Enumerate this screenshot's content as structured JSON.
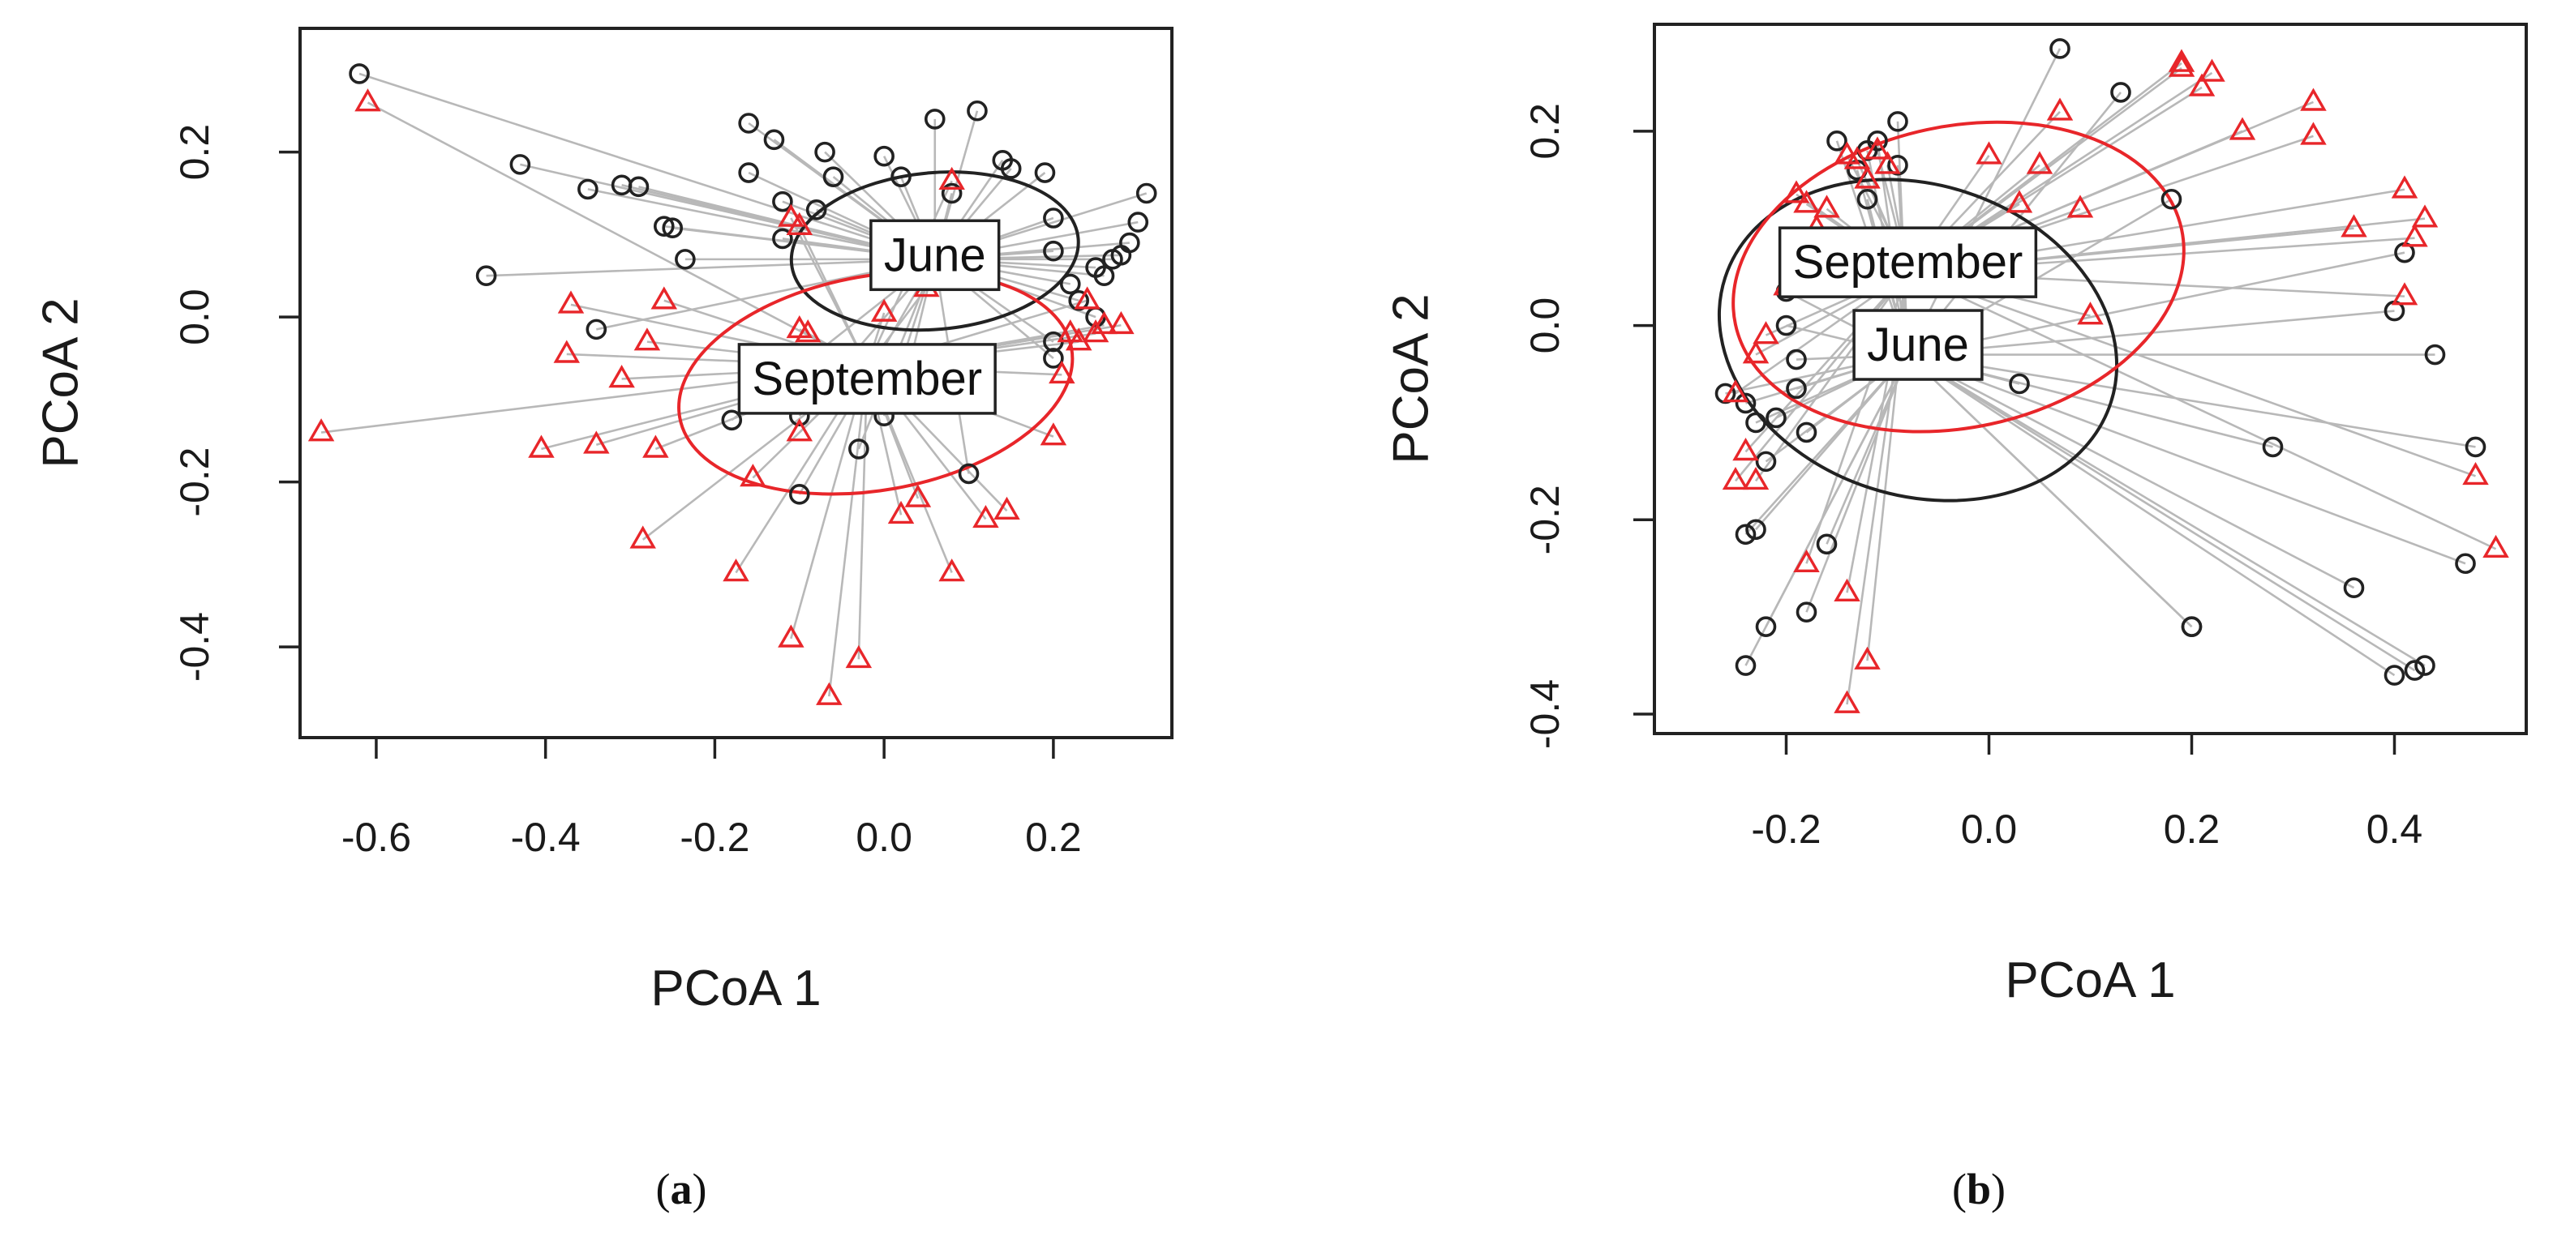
{
  "figure": {
    "background": "#ffffff",
    "colors": {
      "june": "#222222",
      "september": "#e8262a",
      "spoke": "#b8b8b8",
      "frame": "#222222",
      "label_box": "#222222"
    }
  },
  "chart_data": [
    {
      "id": "a",
      "type": "scatter",
      "caption": {
        "open": "(",
        "letter": "a",
        "close": ")"
      },
      "xlabel": "PCoA 1",
      "ylabel": "PCoA 2",
      "xlim": [
        -0.69,
        0.34
      ],
      "ylim": [
        -0.51,
        0.35
      ],
      "xticks": [
        -0.6,
        -0.4,
        -0.2,
        0.0,
        0.2
      ],
      "xtick_labels": [
        "-0.6",
        "-0.4",
        "-0.2",
        "0.0",
        "0.2"
      ],
      "yticks": [
        -0.4,
        -0.2,
        0.0,
        0.2
      ],
      "ytick_labels": [
        "-0.4",
        "-0.2",
        "0.0",
        "0.2"
      ],
      "series": [
        {
          "name": "June",
          "marker": "circle",
          "color": "#222222",
          "centroid": [
            0.06,
            0.07
          ],
          "ellipse": {
            "cx": 0.06,
            "cy": 0.08,
            "rx": 0.17,
            "ry": 0.095,
            "angle": -5
          },
          "points": [
            [
              -0.62,
              0.295
            ],
            [
              -0.43,
              0.185
            ],
            [
              -0.35,
              0.155
            ],
            [
              -0.31,
              0.16
            ],
            [
              -0.29,
              0.158
            ],
            [
              -0.26,
              0.11
            ],
            [
              -0.25,
              0.108
            ],
            [
              -0.235,
              0.07
            ],
            [
              -0.47,
              0.05
            ],
            [
              -0.34,
              -0.015
            ],
            [
              -0.16,
              0.235
            ],
            [
              -0.13,
              0.215
            ],
            [
              -0.16,
              0.175
            ],
            [
              -0.12,
              0.14
            ],
            [
              -0.12,
              0.095
            ],
            [
              -0.07,
              0.2
            ],
            [
              -0.06,
              0.17
            ],
            [
              -0.08,
              0.13
            ],
            [
              0.0,
              0.195
            ],
            [
              0.02,
              0.17
            ],
            [
              0.06,
              0.24
            ],
            [
              0.11,
              0.25
            ],
            [
              0.14,
              0.19
            ],
            [
              0.15,
              0.18
            ],
            [
              0.19,
              0.175
            ],
            [
              0.08,
              0.15
            ],
            [
              0.2,
              0.12
            ],
            [
              0.2,
              0.08
            ],
            [
              0.22,
              0.04
            ],
            [
              0.25,
              0.06
            ],
            [
              0.26,
              0.05
            ],
            [
              0.27,
              0.07
            ],
            [
              0.28,
              0.075
            ],
            [
              0.29,
              0.09
            ],
            [
              0.3,
              0.115
            ],
            [
              0.31,
              0.15
            ],
            [
              0.23,
              0.02
            ],
            [
              0.25,
              0.0
            ],
            [
              0.2,
              -0.03
            ],
            [
              0.2,
              -0.05
            ],
            [
              -0.1,
              -0.12
            ],
            [
              0.0,
              -0.12
            ],
            [
              0.02,
              -0.1
            ],
            [
              -0.03,
              -0.16
            ],
            [
              -0.1,
              -0.215
            ],
            [
              0.1,
              -0.19
            ],
            [
              -0.18,
              -0.125
            ]
          ]
        },
        {
          "name": "September",
          "marker": "triangle",
          "color": "#e8262a",
          "centroid": [
            -0.02,
            -0.06
          ],
          "ellipse": {
            "cx": -0.01,
            "cy": -0.08,
            "rx": 0.235,
            "ry": 0.13,
            "angle": -10
          },
          "points": [
            [
              -0.61,
              0.26
            ],
            [
              -0.665,
              -0.14
            ],
            [
              -0.405,
              -0.16
            ],
            [
              -0.34,
              -0.155
            ],
            [
              -0.27,
              -0.16
            ],
            [
              -0.37,
              0.015
            ],
            [
              -0.375,
              -0.045
            ],
            [
              -0.31,
              -0.075
            ],
            [
              -0.28,
              -0.03
            ],
            [
              -0.26,
              0.02
            ],
            [
              -0.285,
              -0.27
            ],
            [
              -0.175,
              -0.31
            ],
            [
              -0.155,
              -0.195
            ],
            [
              -0.11,
              -0.39
            ],
            [
              -0.065,
              -0.46
            ],
            [
              -0.03,
              -0.415
            ],
            [
              -0.1,
              -0.14
            ],
            [
              -0.1,
              -0.015
            ],
            [
              -0.09,
              -0.02
            ],
            [
              -0.11,
              0.12
            ],
            [
              -0.1,
              0.11
            ],
            [
              0.0,
              0.005
            ],
            [
              0.05,
              0.035
            ],
            [
              0.08,
              0.165
            ],
            [
              0.04,
              -0.22
            ],
            [
              0.02,
              -0.24
            ],
            [
              0.08,
              -0.31
            ],
            [
              0.12,
              -0.245
            ],
            [
              0.145,
              -0.235
            ],
            [
              0.2,
              -0.145
            ],
            [
              0.21,
              -0.07
            ],
            [
              0.22,
              -0.02
            ],
            [
              0.23,
              -0.03
            ],
            [
              0.25,
              -0.02
            ],
            [
              0.26,
              -0.01
            ],
            [
              0.28,
              -0.01
            ],
            [
              0.24,
              0.02
            ]
          ]
        }
      ],
      "group_labels": [
        {
          "series": "June",
          "text": "June",
          "anchor": [
            0.06,
            0.075
          ]
        },
        {
          "series": "September",
          "text": "September",
          "anchor": [
            -0.02,
            -0.075
          ]
        }
      ]
    },
    {
      "id": "b",
      "type": "scatter",
      "caption": {
        "open": "(",
        "letter": "b",
        "close": ")"
      },
      "xlabel": "PCoA 1",
      "ylabel": "PCoA 2",
      "xlim": [
        -0.33,
        0.53
      ],
      "ylim": [
        -0.42,
        0.31
      ],
      "xticks": [
        -0.2,
        0.0,
        0.2,
        0.4
      ],
      "xtick_labels": [
        "-0.2",
        "0.0",
        "0.2",
        "0.4"
      ],
      "yticks": [
        -0.4,
        -0.2,
        0.0,
        0.2
      ],
      "ytick_labels": [
        "-0.4",
        "-0.2",
        "0.0",
        "0.2"
      ],
      "series": [
        {
          "name": "June",
          "marker": "circle",
          "color": "#222222",
          "centroid": [
            -0.08,
            -0.03
          ],
          "ellipse": {
            "cx": -0.07,
            "cy": -0.015,
            "rx": 0.2,
            "ry": 0.16,
            "angle": 18
          },
          "points": [
            [
              -0.15,
              0.19
            ],
            [
              -0.12,
              0.18
            ],
            [
              -0.09,
              0.21
            ],
            [
              -0.13,
              0.16
            ],
            [
              -0.11,
              0.19
            ],
            [
              -0.09,
              0.165
            ],
            [
              -0.12,
              0.13
            ],
            [
              0.07,
              0.285
            ],
            [
              0.13,
              0.24
            ],
            [
              0.18,
              0.13
            ],
            [
              -0.2,
              0.035
            ],
            [
              -0.2,
              0.0
            ],
            [
              -0.19,
              -0.035
            ],
            [
              -0.19,
              -0.065
            ],
            [
              -0.21,
              -0.095
            ],
            [
              -0.18,
              -0.11
            ],
            [
              -0.24,
              -0.08
            ],
            [
              -0.23,
              -0.1
            ],
            [
              -0.26,
              -0.07
            ],
            [
              -0.22,
              -0.14
            ],
            [
              -0.23,
              -0.21
            ],
            [
              -0.24,
              -0.215
            ],
            [
              -0.16,
              -0.225
            ],
            [
              -0.22,
              -0.31
            ],
            [
              -0.18,
              -0.295
            ],
            [
              -0.24,
              -0.35
            ],
            [
              0.03,
              -0.06
            ],
            [
              0.2,
              -0.31
            ],
            [
              0.2,
              -0.31
            ],
            [
              0.28,
              -0.125
            ],
            [
              0.36,
              -0.27
            ],
            [
              0.4,
              -0.36
            ],
            [
              0.42,
              -0.355
            ],
            [
              0.43,
              -0.35
            ],
            [
              0.47,
              -0.245
            ],
            [
              0.48,
              -0.125
            ],
            [
              0.44,
              -0.03
            ],
            [
              0.4,
              0.015
            ],
            [
              0.41,
              0.075
            ]
          ]
        },
        {
          "name": "September",
          "marker": "triangle",
          "color": "#e8262a",
          "centroid": [
            -0.08,
            0.055
          ],
          "ellipse": {
            "cx": -0.03,
            "cy": 0.05,
            "rx": 0.225,
            "ry": 0.155,
            "angle": -12
          },
          "points": [
            [
              -0.14,
              0.175
            ],
            [
              -0.13,
              0.17
            ],
            [
              -0.12,
              0.15
            ],
            [
              -0.1,
              0.165
            ],
            [
              -0.11,
              0.18
            ],
            [
              -0.16,
              0.12
            ],
            [
              -0.17,
              0.1
            ],
            [
              -0.19,
              0.135
            ],
            [
              -0.18,
              0.125
            ],
            [
              0.0,
              0.175
            ],
            [
              0.03,
              0.125
            ],
            [
              0.05,
              0.165
            ],
            [
              0.07,
              0.22
            ],
            [
              0.09,
              0.12
            ],
            [
              0.1,
              0.01
            ],
            [
              0.19,
              0.27
            ],
            [
              0.19,
              0.265
            ],
            [
              0.21,
              0.245
            ],
            [
              0.22,
              0.26
            ],
            [
              0.25,
              0.2
            ],
            [
              0.32,
              0.23
            ],
            [
              0.32,
              0.195
            ],
            [
              0.36,
              0.1
            ],
            [
              0.41,
              0.14
            ],
            [
              0.42,
              0.09
            ],
            [
              0.43,
              0.11
            ],
            [
              0.41,
              0.03
            ],
            [
              0.48,
              -0.155
            ],
            [
              0.5,
              -0.23
            ],
            [
              -0.2,
              0.04
            ],
            [
              -0.22,
              -0.01
            ],
            [
              -0.23,
              -0.03
            ],
            [
              -0.25,
              -0.07
            ],
            [
              -0.24,
              -0.13
            ],
            [
              -0.25,
              -0.16
            ],
            [
              -0.23,
              -0.16
            ],
            [
              -0.18,
              -0.245
            ],
            [
              -0.14,
              -0.275
            ],
            [
              -0.12,
              -0.345
            ],
            [
              -0.14,
              -0.39
            ]
          ]
        }
      ],
      "group_labels": [
        {
          "series": "September",
          "text": "September",
          "anchor": [
            -0.08,
            0.065
          ]
        },
        {
          "series": "June",
          "text": "June",
          "anchor": [
            -0.07,
            -0.02
          ]
        }
      ]
    }
  ]
}
